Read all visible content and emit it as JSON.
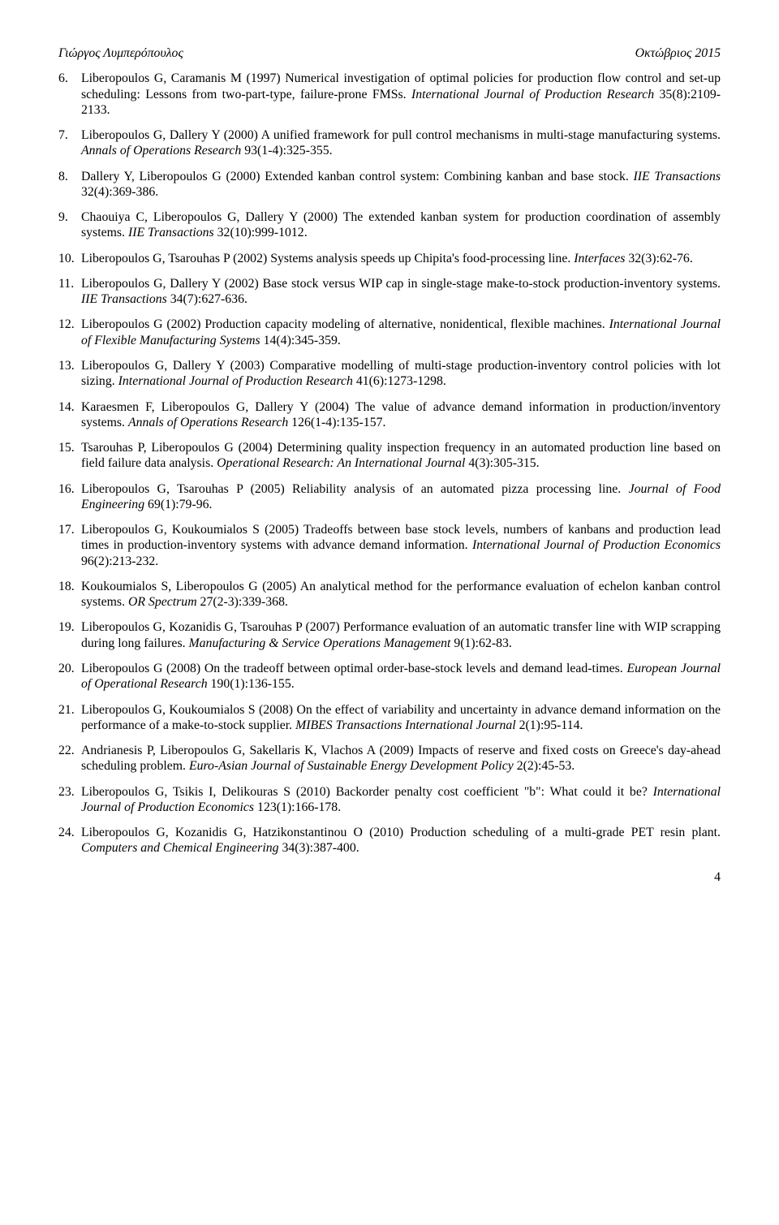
{
  "header": {
    "left": "Γιώργος Λυμπερόπουλος",
    "right": "Οκτώβριος 2015"
  },
  "references": [
    {
      "num": "6.",
      "pre": "Liberopoulos G, Caramanis M (1997) Numerical investigation of optimal policies for production flow control and set-up scheduling: Lessons from two-part-type, failure-prone FMSs. ",
      "ital": "International Journal of Production Research",
      "post": " 35(8):2109-2133."
    },
    {
      "num": "7.",
      "pre": "Liberopoulos G, Dallery Y (2000) A unified framework for pull control mechanisms in multi-stage manufacturing systems. ",
      "ital": "Annals of Operations Research",
      "post": " 93(1-4):325-355."
    },
    {
      "num": "8.",
      "pre": "Dallery Y, Liberopoulos G (2000) Extended kanban control system: Combining kanban and base stock. ",
      "ital": "IIE Transactions",
      "post": " 32(4):369-386."
    },
    {
      "num": "9.",
      "pre": "Chaouiya C, Liberopoulos G, Dallery Y (2000) The extended kanban system for production coordination of assembly systems. ",
      "ital": "IIE Transactions",
      "post": " 32(10):999-1012."
    },
    {
      "num": "10.",
      "pre": "Liberopoulos G, Tsarouhas P (2002) Systems analysis speeds up Chipita's food-processing line. ",
      "ital": "Interfaces",
      "post": " 32(3):62-76."
    },
    {
      "num": "11.",
      "pre": "Liberopoulos G, Dallery Y (2002) Base stock versus WIP cap in single-stage make-to-stock production-inventory systems. ",
      "ital": "IIE Transactions",
      "post": " 34(7):627-636."
    },
    {
      "num": "12.",
      "pre": "Liberopoulos G (2002) Production capacity modeling of alternative, nonidentical, flexible machines. ",
      "ital": "International Journal of Flexible Manufacturing Systems",
      "post": " 14(4):345-359."
    },
    {
      "num": "13.",
      "pre": "Liberopoulos  G, Dallery Y (2003) Comparative modelling of multi-stage production-inventory control policies with lot sizing. ",
      "ital": "International Journal of Production Research",
      "post": " 41(6):1273-1298."
    },
    {
      "num": "14.",
      "pre": "Karaesmen F, Liberopoulos G, Dallery Y (2004) The value of advance demand information in production/inventory systems. ",
      "ital": "Annals of Operations Research",
      "post": " 126(1-4):135-157."
    },
    {
      "num": "15.",
      "pre": "Tsarouhas P, Liberopoulos G (2004) Determining quality inspection frequency in an automated production line based on field failure data analysis. ",
      "ital": "Operational Research: An International Journal",
      "post": " 4(3):305-315."
    },
    {
      "num": "16.",
      "pre": "Liberopoulos G, Tsarouhas P (2005) Reliability analysis of an automated pizza processing line. ",
      "ital": "Journal of Food Engineering",
      "post": " 69(1):79-96."
    },
    {
      "num": "17.",
      "pre": "Liberopoulos G, Koukoumialos S (2005) Tradeoffs between base stock levels, numbers of kanbans and production lead times in production-inventory systems with advance demand information. ",
      "ital": "International Journal of Production Economics",
      "post": " 96(2):213-232."
    },
    {
      "num": "18.",
      "pre": "Koukoumialos S, Liberopoulos G (2005) An analytical method for the performance evaluation of echelon kanban control systems. ",
      "ital": "OR Spectrum",
      "post": " 27(2-3):339-368."
    },
    {
      "num": "19.",
      "pre": "Liberopoulos G, Kozanidis G, Tsarouhas P (2007) Performance evaluation of an automatic transfer line with WIP scrapping during long failures. ",
      "ital": "Manufacturing & Service Operations Management",
      "post": " 9(1):62-83."
    },
    {
      "num": "20.",
      "pre": "Liberopoulos G (2008) On the tradeoff between optimal order-base-stock levels and demand lead-times. ",
      "ital": "European Journal of Operational Research",
      "post": " 190(1):136-155."
    },
    {
      "num": "21.",
      "pre": "Liberopoulos G, Koukoumialos S (2008) On the effect of variability and uncertainty in advance demand information on the performance of a make-to-stock supplier. ",
      "ital": "MIBES Transactions International Journal",
      "post": " 2(1):95-114."
    },
    {
      "num": "22.",
      "pre": "Andrianesis P, Liberopoulos G, Sakellaris K, Vlachos A (2009) Impacts of reserve and fixed costs on Greece's day-ahead scheduling problem. ",
      "ital": "Euro-Asian Journal of Sustainable Energy Development Policy",
      "post": " 2(2):45-53."
    },
    {
      "num": "23.",
      "pre": "Liberopoulos G, Tsikis I, Delikouras S (2010) Backorder penalty cost coefficient \"b\": What could it be? ",
      "ital": "International Journal of Production Economics",
      "post": " 123(1):166-178."
    },
    {
      "num": "24.",
      "pre": "Liberopoulos G, Kozanidis G, Hatzikonstantinou O (2010) Production scheduling of a multi-grade PET resin plant. ",
      "ital": "Computers and Chemical Engineering",
      "post": " 34(3):387-400."
    }
  ],
  "page_number": "4"
}
